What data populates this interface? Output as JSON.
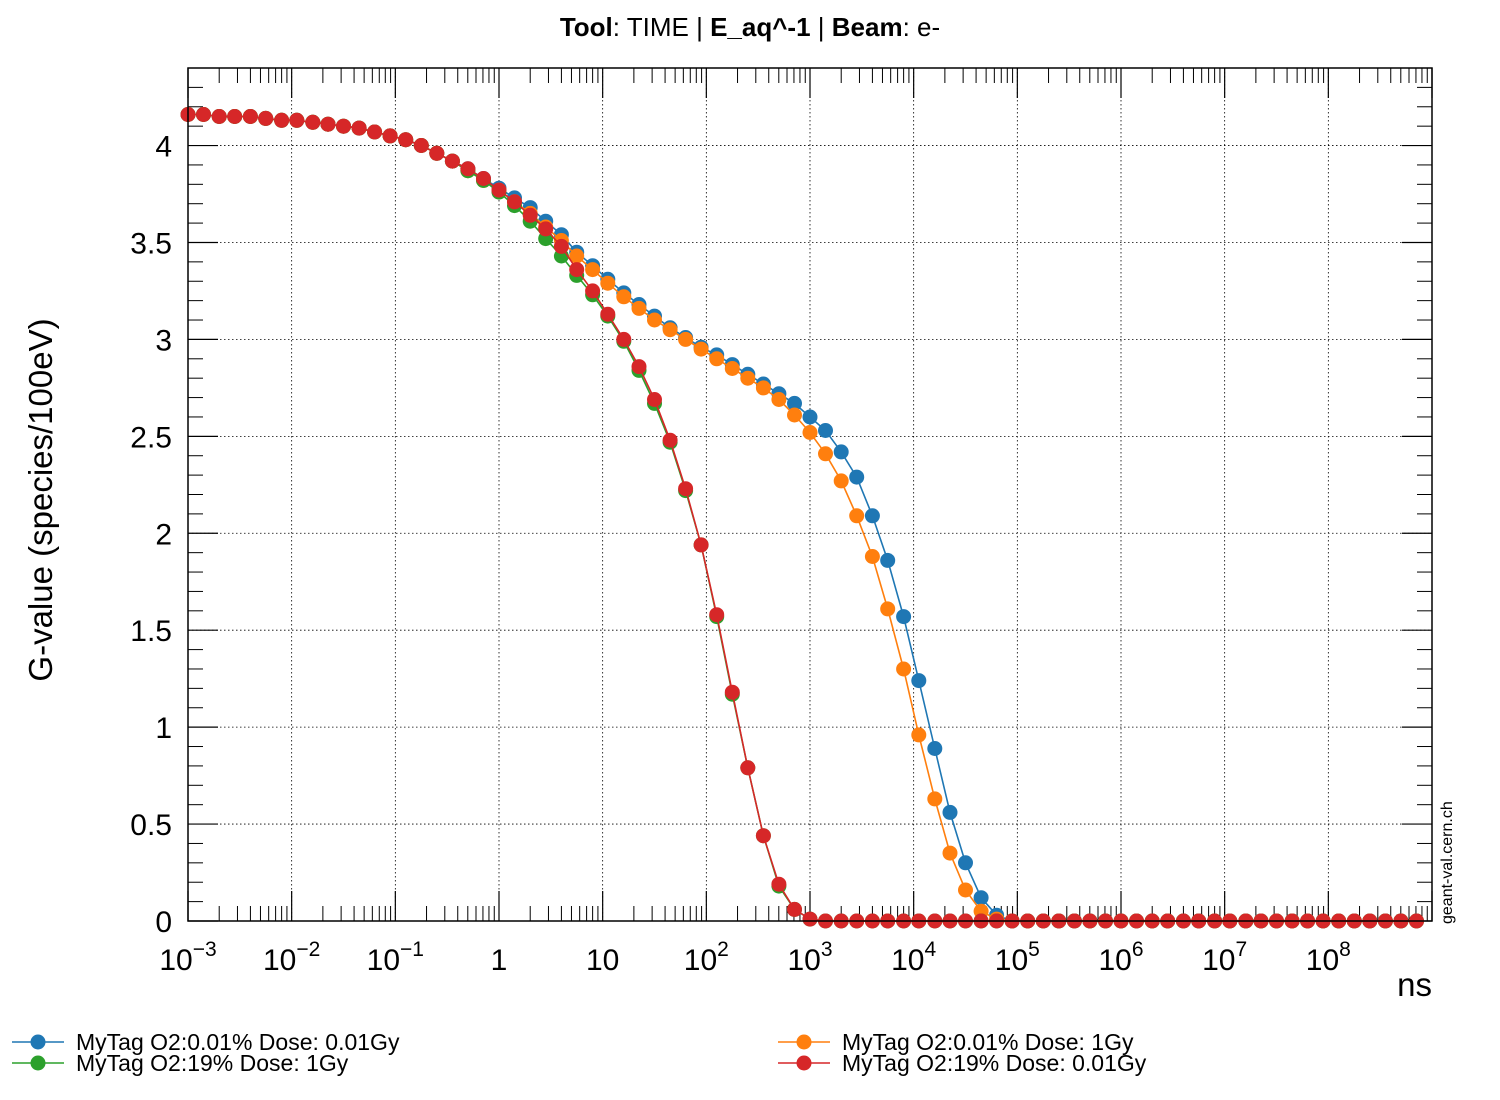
{
  "chart_data": {
    "type": "line",
    "title": {
      "tool_label": "Tool",
      "tool_value": ": TIME | ",
      "species": "E_aq^-1",
      "separator": " | ",
      "beam_label": "Beam",
      "beam_value": ": e-"
    },
    "xlabel": "ns",
    "ylabel": "G-value (species/100eV)",
    "x_scale": "log",
    "xlim": [
      0.001,
      1000000000
    ],
    "ylim": [
      0,
      4.4
    ],
    "x_tick_labels": [
      {
        "base": "10",
        "exp": "−3",
        "value": 0.001
      },
      {
        "base": "10",
        "exp": "−2",
        "value": 0.01
      },
      {
        "base": "10",
        "exp": "−1",
        "value": 0.1
      },
      {
        "base": "1",
        "exp": "",
        "value": 1
      },
      {
        "base": "10",
        "exp": "",
        "value": 10
      },
      {
        "base": "10",
        "exp": "2",
        "value": 100
      },
      {
        "base": "10",
        "exp": "3",
        "value": 1000
      },
      {
        "base": "10",
        "exp": "4",
        "value": 10000
      },
      {
        "base": "10",
        "exp": "5",
        "value": 100000
      },
      {
        "base": "10",
        "exp": "6",
        "value": 1000000
      },
      {
        "base": "10",
        "exp": "7",
        "value": 10000000
      },
      {
        "base": "10",
        "exp": "8",
        "value": 100000000
      }
    ],
    "y_tick_labels": [
      {
        "label": "0",
        "value": 0
      },
      {
        "label": "0.5",
        "value": 0.5
      },
      {
        "label": "1",
        "value": 1
      },
      {
        "label": "1.5",
        "value": 1.5
      },
      {
        "label": "2",
        "value": 2
      },
      {
        "label": "2.5",
        "value": 2.5
      },
      {
        "label": "3",
        "value": 3
      },
      {
        "label": "3.5",
        "value": 3.5
      },
      {
        "label": "4",
        "value": 4
      }
    ],
    "grid": true,
    "legend_position": "bottom",
    "watermark": "geant-val.cern.ch",
    "x": [
      0.001,
      0.00141,
      0.002,
      0.00282,
      0.004,
      0.00562,
      0.008,
      0.0112,
      0.016,
      0.0224,
      0.0316,
      0.0447,
      0.0631,
      0.0891,
      0.126,
      0.178,
      0.251,
      0.355,
      0.501,
      0.708,
      1,
      1.41,
      2,
      2.82,
      4,
      5.62,
      8,
      11.2,
      16,
      22.4,
      31.6,
      44.7,
      63.1,
      89.1,
      126,
      178,
      251,
      355,
      501,
      708,
      1000,
      1410,
      2000,
      2820,
      4000,
      5620,
      8000,
      11200,
      16000,
      22400,
      31600,
      44700,
      63100,
      89100,
      126000,
      178000,
      251000,
      355000,
      501000,
      708000,
      1000000,
      1410000,
      2000000,
      2820000,
      4000000,
      5620000,
      8000000,
      11200000,
      16000000,
      22400000,
      31600000,
      44700000,
      63100000,
      89100000,
      126000000,
      178000000,
      251000000,
      355000000,
      501000000,
      708000000
    ],
    "series": [
      {
        "name": "MyTag  O2:0.01%    Dose: 0.01Gy",
        "color": "#1f77b4",
        "values": [
          4.16,
          4.16,
          4.15,
          4.15,
          4.15,
          4.14,
          4.13,
          4.13,
          4.12,
          4.11,
          4.1,
          4.09,
          4.07,
          4.05,
          4.03,
          4.0,
          3.96,
          3.92,
          3.88,
          3.83,
          3.78,
          3.73,
          3.68,
          3.61,
          3.54,
          3.45,
          3.38,
          3.31,
          3.24,
          3.18,
          3.12,
          3.06,
          3.01,
          2.96,
          2.92,
          2.87,
          2.82,
          2.77,
          2.72,
          2.67,
          2.6,
          2.53,
          2.42,
          2.29,
          2.09,
          1.86,
          1.57,
          1.24,
          0.89,
          0.56,
          0.3,
          0.12,
          0.03,
          0.0,
          0.0,
          0.0,
          0.0,
          0.0,
          0.0,
          0.0,
          0.0,
          0.0,
          0.0,
          0.0,
          0.0,
          0.0,
          0.0,
          0.0,
          0.0,
          0.0,
          0.0,
          0.0,
          0.0,
          0.0,
          0.0,
          0.0,
          0.0,
          0.0,
          0.0,
          0.0
        ]
      },
      {
        "name": "MyTag  O2:0.01%    Dose: 1Gy",
        "color": "#ff7f0e",
        "values": [
          4.16,
          4.16,
          4.15,
          4.15,
          4.15,
          4.14,
          4.13,
          4.13,
          4.12,
          4.11,
          4.1,
          4.09,
          4.07,
          4.05,
          4.03,
          4.0,
          3.96,
          3.92,
          3.87,
          3.82,
          3.77,
          3.71,
          3.65,
          3.58,
          3.51,
          3.43,
          3.36,
          3.29,
          3.22,
          3.16,
          3.1,
          3.05,
          3.0,
          2.95,
          2.9,
          2.85,
          2.8,
          2.75,
          2.69,
          2.61,
          2.52,
          2.41,
          2.27,
          2.09,
          1.88,
          1.61,
          1.3,
          0.96,
          0.63,
          0.35,
          0.16,
          0.05,
          0.01,
          0.0,
          0.0,
          0.0,
          0.0,
          0.0,
          0.0,
          0.0,
          0.0,
          0.0,
          0.0,
          0.0,
          0.0,
          0.0,
          0.0,
          0.0,
          0.0,
          0.0,
          0.0,
          0.0,
          0.0,
          0.0,
          0.0,
          0.0,
          0.0,
          0.0,
          0.0,
          0.0
        ]
      },
      {
        "name": "MyTag  O2:19%    Dose: 1Gy",
        "color": "#2ca02c",
        "values": [
          4.16,
          4.16,
          4.15,
          4.15,
          4.15,
          4.14,
          4.13,
          4.13,
          4.12,
          4.11,
          4.1,
          4.09,
          4.07,
          4.05,
          4.03,
          4.0,
          3.96,
          3.92,
          3.87,
          3.82,
          3.76,
          3.69,
          3.61,
          3.52,
          3.43,
          3.33,
          3.23,
          3.12,
          2.99,
          2.84,
          2.67,
          2.47,
          2.22,
          1.94,
          1.57,
          1.17,
          0.79,
          0.44,
          0.18,
          0.06,
          0.01,
          0.0,
          0.0,
          0.0,
          0.0,
          0.0,
          0.0,
          0.0,
          0.0,
          0.0,
          0.0,
          0.0,
          0.0,
          0.0,
          0.0,
          0.0,
          0.0,
          0.0,
          0.0,
          0.0,
          0.0,
          0.0,
          0.0,
          0.0,
          0.0,
          0.0,
          0.0,
          0.0,
          0.0,
          0.0,
          0.0,
          0.0,
          0.0,
          0.0,
          0.0,
          0.0,
          0.0,
          0.0,
          0.0,
          0.0
        ]
      },
      {
        "name": "MyTag  O2:19%    Dose: 0.01Gy",
        "color": "#d62728",
        "values": [
          4.16,
          4.16,
          4.15,
          4.15,
          4.15,
          4.14,
          4.13,
          4.13,
          4.12,
          4.11,
          4.1,
          4.09,
          4.07,
          4.05,
          4.03,
          4.0,
          3.96,
          3.92,
          3.88,
          3.83,
          3.77,
          3.71,
          3.64,
          3.57,
          3.48,
          3.36,
          3.25,
          3.13,
          3.0,
          2.86,
          2.69,
          2.48,
          2.23,
          1.94,
          1.58,
          1.18,
          0.79,
          0.44,
          0.19,
          0.06,
          0.01,
          0.0,
          0.0,
          0.0,
          0.0,
          0.0,
          0.0,
          0.0,
          0.0,
          0.0,
          0.0,
          0.0,
          0.0,
          0.0,
          0.0,
          0.0,
          0.0,
          0.0,
          0.0,
          0.0,
          0.0,
          0.0,
          0.0,
          0.0,
          0.0,
          0.0,
          0.0,
          0.0,
          0.0,
          0.0,
          0.0,
          0.0,
          0.0,
          0.0,
          0.0,
          0.0,
          0.0,
          0.0,
          0.0,
          0.0
        ]
      }
    ]
  }
}
